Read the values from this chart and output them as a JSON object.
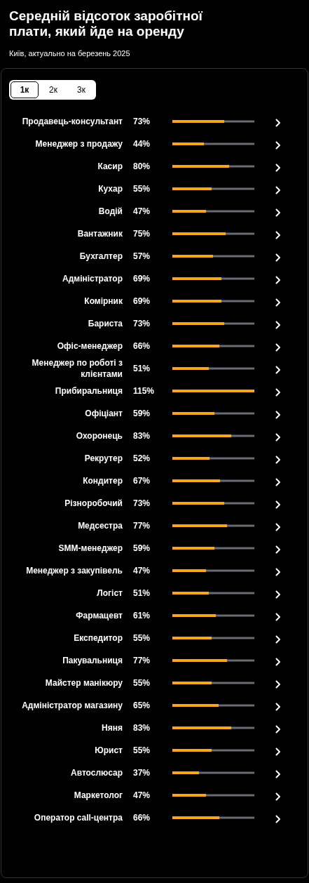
{
  "chart_data": {
    "type": "bar",
    "orientation": "horizontal",
    "title": "Середній відсоток заробітної плати, який йде на оренду",
    "subtitle": "Київ, актуально на березень 2025",
    "annotations": [
      "1к",
      "2к",
      "3к"
    ],
    "categories": [
      "Продавець-консультант",
      "Менеджер з продажу",
      "Касир",
      "Кухар",
      "Водій",
      "Вантажник",
      "Бухгалтер",
      "Адміністратор",
      "Комірник",
      "Бариста",
      "Офіс-менеджер",
      "Менеджер по роботі з клієнтами",
      "Прибиральниця",
      "Офіціант",
      "Охоронець",
      "Рекрутер",
      "Кондитер",
      "Різноробочий",
      "Медсестра",
      "SMM-менеджер",
      "Менеджер з закупівель",
      "Логіст",
      "Фармацевт",
      "Експедитор",
      "Пакувальниця",
      "Майстер манікюру",
      "Адміністратор магазину",
      "Няня",
      "Юрист",
      "Автослюсар",
      "Маркетолог",
      "Оператор call-центра"
    ],
    "values": [
      73,
      44,
      80,
      55,
      47,
      75,
      57,
      69,
      69,
      73,
      66,
      51,
      115,
      59,
      83,
      52,
      67,
      73,
      77,
      59,
      47,
      51,
      61,
      55,
      77,
      55,
      65,
      83,
      55,
      37,
      47,
      66
    ],
    "value_labels": [
      "73%",
      "44%",
      "80%",
      "55%",
      "47%",
      "75%",
      "57%",
      "69%",
      "69%",
      "73%",
      "66%",
      "51%",
      "115%",
      "59%",
      "83%",
      "52%",
      "67%",
      "73%",
      "77%",
      "59%",
      "47%",
      "51%",
      "61%",
      "55%",
      "77%",
      "55%",
      "65%",
      "83%",
      "55%",
      "37%",
      "47%",
      "66%"
    ],
    "color": "#f5a623",
    "xlim": [
      0,
      115
    ],
    "tick_labels": "y"
  }
}
